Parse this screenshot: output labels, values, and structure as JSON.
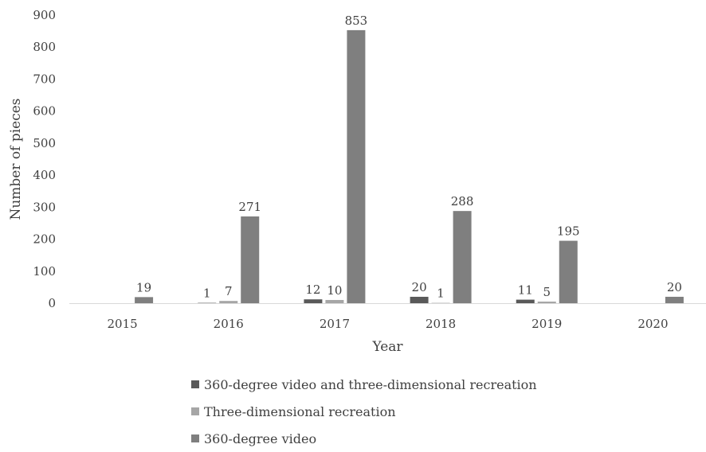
{
  "chart_data": {
    "type": "bar",
    "categories": [
      "2015",
      "2016",
      "2017",
      "2018",
      "2019",
      "2020"
    ],
    "series": [
      {
        "name": "360-degree video and three-dimensional recreation",
        "color": "#595959",
        "values": [
          null,
          1,
          12,
          20,
          11,
          null
        ]
      },
      {
        "name": "Three-dimensional recreation",
        "color": "#a6a6a6",
        "values": [
          null,
          7,
          10,
          1,
          5,
          null
        ]
      },
      {
        "name": "360-degree video",
        "color": "#7f7f7f",
        "values": [
          19,
          271,
          853,
          288,
          195,
          20
        ]
      }
    ],
    "xlabel": "Year",
    "ylabel": "Number of pieces",
    "ylim": [
      0,
      900
    ],
    "yticks": [
      0,
      100,
      200,
      300,
      400,
      500,
      600,
      700,
      800,
      900
    ],
    "grid": false,
    "legend_position": "bottom"
  }
}
